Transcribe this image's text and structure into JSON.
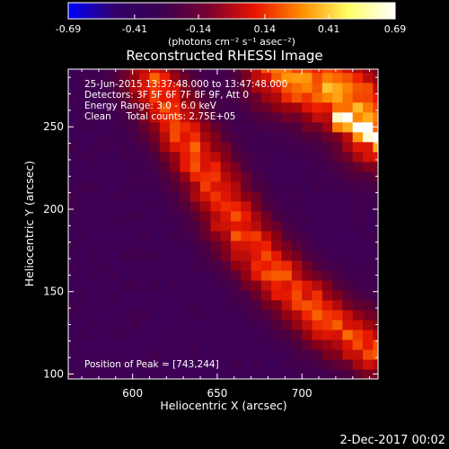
{
  "chart_data": {
    "type": "heatmap",
    "title": "Reconstructed RHESSI Image",
    "xlabel": "Heliocentric X (arcsec)",
    "ylabel": "Heliocentric Y (arcsec)",
    "xlim": [
      562,
      745
    ],
    "ylim": [
      97,
      285
    ],
    "x_ticks": [
      600,
      650,
      700
    ],
    "y_ticks": [
      100,
      150,
      200,
      250
    ],
    "colorbar": {
      "range": [
        -0.69,
        0.69
      ],
      "ticks": [
        -0.69,
        -0.41,
        -0.14,
        0.14,
        0.41,
        0.69
      ],
      "tick_labels": [
        "-0.69",
        "-0.41",
        "-0.14",
        "0.14",
        "0.41",
        "0.69"
      ],
      "colors": [
        "#0000ff",
        "#33006a",
        "#3a0052",
        "#7a0030",
        "#e81400",
        "#ff8c00",
        "#ffff66",
        "#ffffff"
      ]
    },
    "colorbar_label": "(photons cm⁻² s⁻¹ asec⁻²)",
    "annotations": [
      "25-Jun-2015 13:37:48.000 to 13:47:48.000",
      "Detectors: 3F 5F 6F 7F 8F 9F, Att 0",
      "Energy Range: 3.0 - 6.0 keV",
      "Clean     Total counts: 2.75E+05"
    ],
    "peak_label": "Position of Peak = [743,244]",
    "peak": {
      "x": 743,
      "y": 244,
      "value": 0.69
    },
    "features": [
      {
        "name": "arc",
        "points": [
          [
            612,
            280
          ],
          [
            625,
            255
          ],
          [
            645,
            220
          ],
          [
            665,
            185
          ],
          [
            690,
            155
          ],
          [
            718,
            130
          ],
          [
            745,
            115
          ]
        ],
        "width": 13,
        "peak_value": 0.34
      },
      {
        "name": "upper-right-source",
        "points": [
          [
            690,
            285
          ],
          [
            712,
            275
          ],
          [
            735,
            262
          ],
          [
            745,
            248
          ]
        ],
        "width": 17,
        "peak_value": 0.45
      },
      {
        "name": "bright-core",
        "points": [
          [
            725,
            255
          ],
          [
            745,
            244
          ]
        ],
        "width": 7,
        "peak_value": 0.69
      }
    ],
    "background_value": -0.12
  },
  "footer": {
    "date": "2-Dec-2017 00:02"
  }
}
